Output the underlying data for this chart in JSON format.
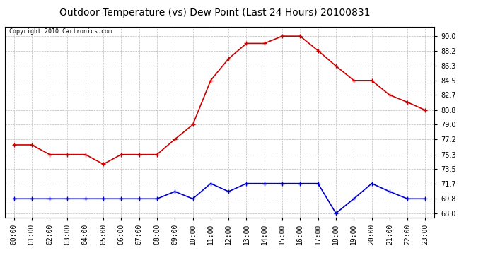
{
  "title": "Outdoor Temperature (vs) Dew Point (Last 24 Hours) 20100831",
  "copyright": "Copyright 2010 Cartronics.com",
  "hours": [
    "00:00",
    "01:00",
    "02:00",
    "03:00",
    "04:00",
    "05:00",
    "06:00",
    "07:00",
    "08:00",
    "09:00",
    "10:00",
    "11:00",
    "12:00",
    "13:00",
    "14:00",
    "15:00",
    "16:00",
    "17:00",
    "18:00",
    "19:00",
    "20:00",
    "21:00",
    "22:00",
    "23:00"
  ],
  "temp": [
    76.5,
    76.5,
    75.3,
    75.3,
    75.3,
    74.1,
    75.3,
    75.3,
    75.3,
    77.2,
    79.0,
    84.5,
    87.2,
    89.1,
    89.1,
    90.0,
    90.0,
    88.2,
    86.3,
    84.5,
    84.5,
    82.7,
    81.8,
    80.8
  ],
  "dew": [
    69.8,
    69.8,
    69.8,
    69.8,
    69.8,
    69.8,
    69.8,
    69.8,
    69.8,
    70.7,
    69.8,
    71.7,
    70.7,
    71.7,
    71.7,
    71.7,
    71.7,
    71.7,
    68.0,
    69.8,
    71.7,
    70.7,
    69.8,
    69.8
  ],
  "temp_color": "#cc0000",
  "dew_color": "#0000cc",
  "bg_color": "#ffffff",
  "grid_color": "#bbbbbb",
  "yticks": [
    68.0,
    69.8,
    71.7,
    73.5,
    75.3,
    77.2,
    79.0,
    80.8,
    82.7,
    84.5,
    86.3,
    88.2,
    90.0
  ],
  "ylim": [
    67.5,
    91.2
  ],
  "title_fontsize": 10,
  "copyright_fontsize": 6,
  "tick_fontsize": 7,
  "marker": "+",
  "marker_size": 5,
  "linewidth": 1.2
}
